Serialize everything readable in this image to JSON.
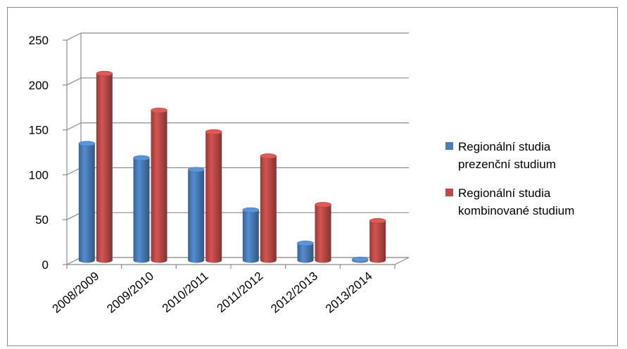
{
  "chart_data": {
    "type": "bar",
    "categories": [
      "2008/2009",
      "2009/2010",
      "2010/2011",
      "2011/2012",
      "2012/2013",
      "2013/2014"
    ],
    "series": [
      {
        "name": "Regionální studia prezenční studium",
        "name_lines": [
          "Regionální studia",
          "prezenční studium"
        ],
        "color": "#4a7ebb",
        "values": [
          130,
          114,
          101,
          56,
          19,
          1
        ]
      },
      {
        "name": "Regionální studia kombinované studium",
        "name_lines": [
          "Regionální studia",
          "kombinované studium"
        ],
        "color": "#be4b48",
        "values": [
          208,
          167,
          143,
          116,
          62,
          44
        ]
      }
    ],
    "yticks": [
      "0",
      "50",
      "100",
      "150",
      "200",
      "250"
    ],
    "ylim": [
      0,
      250
    ],
    "grid": true,
    "legend_position": "right",
    "title": "",
    "xlabel": "",
    "ylabel": ""
  }
}
